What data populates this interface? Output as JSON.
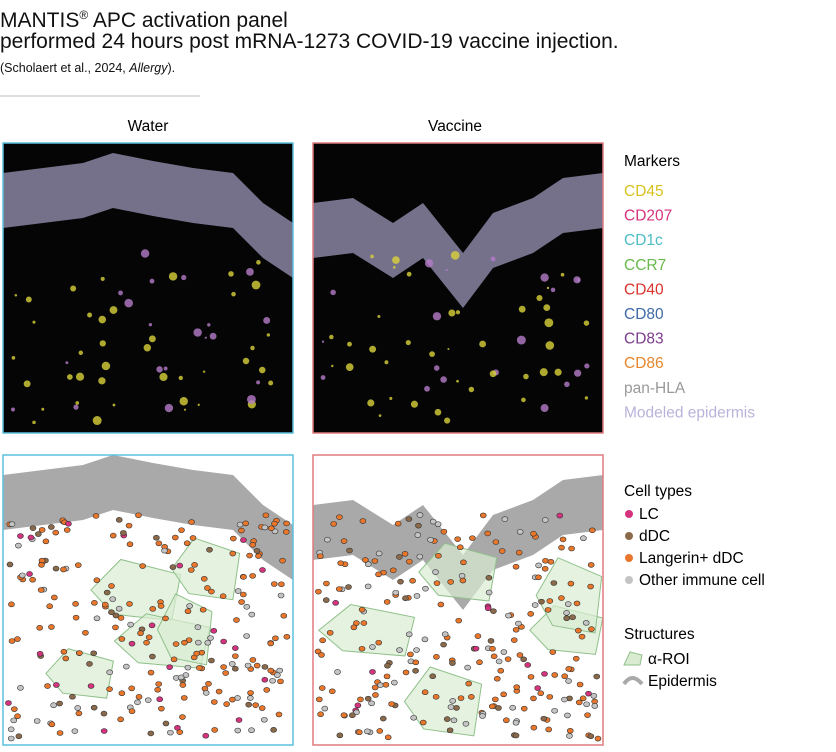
{
  "header": {
    "title_line1": {
      "brand": "MANTIS",
      "mark": "®",
      "rest": " APC activation panel"
    },
    "title_line2": "performed 24 hours post mRNA-1273 COVID-19 vaccine injection.",
    "citation": {
      "before": "(Scholaert et al., 2024, ",
      "journal": "Allergy",
      "after": ")."
    }
  },
  "columns": [
    "Water",
    "Vaccine"
  ],
  "markers": {
    "title": "Markers",
    "items": [
      {
        "label": "CD45",
        "color": "#d9c21d"
      },
      {
        "label": "CD207",
        "color": "#d6337f"
      },
      {
        "label": "CD1c",
        "color": "#4dbdc4"
      },
      {
        "label": "CCR7",
        "color": "#66b94a"
      },
      {
        "label": "CD40",
        "color": "#d9342b"
      },
      {
        "label": "CD80",
        "color": "#3f6aa8"
      },
      {
        "label": "CD83",
        "color": "#7b3c8c"
      },
      {
        "label": "CD86",
        "color": "#e8862b"
      },
      {
        "label": "pan-HLA",
        "color": "#9a9a9a"
      },
      {
        "label": "Modeled epidermis",
        "color": "#b8b3d9"
      }
    ]
  },
  "cell_types": {
    "title": "Cell types",
    "items": [
      {
        "label": "LC",
        "color": "#d6337f"
      },
      {
        "label": "dDC",
        "color": "#8a6a4a"
      },
      {
        "label": "Langerin+ dDC",
        "color": "#e8762b"
      },
      {
        "label": "Other immune cell",
        "color": "#c4c4c4"
      }
    ]
  },
  "structures": {
    "title": "Structures",
    "items": [
      {
        "label": "α-ROI"
      },
      {
        "label": "Epidermis"
      }
    ]
  }
}
